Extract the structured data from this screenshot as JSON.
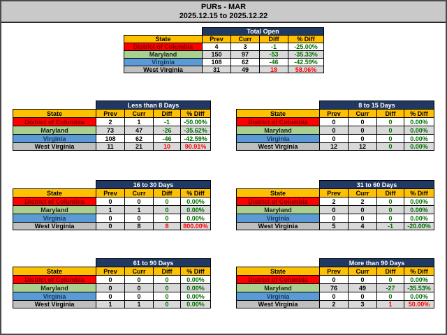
{
  "window": {
    "title": "PURs - MAR",
    "date_range": "2025.12.15 to 2025.12.22"
  },
  "table_columns": [
    "State",
    "Prev",
    "Curr",
    "Diff",
    "% Diff"
  ],
  "tables": [
    {
      "title": "Total Open",
      "rows": [
        {
          "state": "District of Columbia",
          "state_key": "dc",
          "prev": "4",
          "curr": "3",
          "diff": "-1",
          "pct_diff": "-25.00%",
          "direction": "down"
        },
        {
          "state": "Maryland",
          "state_key": "md",
          "prev": "150",
          "curr": "97",
          "diff": "-53",
          "pct_diff": "-35.33%",
          "direction": "down"
        },
        {
          "state": "Virginia",
          "state_key": "va",
          "prev": "108",
          "curr": "62",
          "diff": "-46",
          "pct_diff": "-42.59%",
          "direction": "down"
        },
        {
          "state": "West Virginia",
          "state_key": "wv",
          "prev": "31",
          "curr": "49",
          "diff": "18",
          "pct_diff": "58.06%",
          "direction": "up"
        }
      ]
    },
    {
      "title": "Less than 8 Days",
      "rows": [
        {
          "state": "District of Columbia",
          "state_key": "dc",
          "prev": "2",
          "curr": "1",
          "diff": "-1",
          "pct_diff": "-50.00%",
          "direction": "down"
        },
        {
          "state": "Maryland",
          "state_key": "md",
          "prev": "73",
          "curr": "47",
          "diff": "-26",
          "pct_diff": "-35.62%",
          "direction": "down"
        },
        {
          "state": "Virginia",
          "state_key": "va",
          "prev": "108",
          "curr": "62",
          "diff": "-46",
          "pct_diff": "-42.59%",
          "direction": "down"
        },
        {
          "state": "West Virginia",
          "state_key": "wv",
          "prev": "11",
          "curr": "21",
          "diff": "10",
          "pct_diff": "90.91%",
          "direction": "up"
        }
      ]
    },
    {
      "title": "8 to 15 Days",
      "rows": [
        {
          "state": "District of Columbia",
          "state_key": "dc",
          "prev": "0",
          "curr": "0",
          "diff": "0",
          "pct_diff": "0.00%",
          "direction": "flat"
        },
        {
          "state": "Maryland",
          "state_key": "md",
          "prev": "0",
          "curr": "0",
          "diff": "0",
          "pct_diff": "0.00%",
          "direction": "flat"
        },
        {
          "state": "Virginia",
          "state_key": "va",
          "prev": "0",
          "curr": "0",
          "diff": "0",
          "pct_diff": "0.00%",
          "direction": "flat"
        },
        {
          "state": "West Virginia",
          "state_key": "wv",
          "prev": "12",
          "curr": "12",
          "diff": "0",
          "pct_diff": "0.00%",
          "direction": "flat"
        }
      ]
    },
    {
      "title": "16 to 30 Days",
      "rows": [
        {
          "state": "District of Columbia",
          "state_key": "dc",
          "prev": "0",
          "curr": "0",
          "diff": "0",
          "pct_diff": "0.00%",
          "direction": "flat"
        },
        {
          "state": "Maryland",
          "state_key": "md",
          "prev": "1",
          "curr": "1",
          "diff": "0",
          "pct_diff": "0.00%",
          "direction": "flat"
        },
        {
          "state": "Virginia",
          "state_key": "va",
          "prev": "0",
          "curr": "0",
          "diff": "0",
          "pct_diff": "0.00%",
          "direction": "flat"
        },
        {
          "state": "West Virginia",
          "state_key": "wv",
          "prev": "0",
          "curr": "8",
          "diff": "8",
          "pct_diff": "800.00%",
          "direction": "up"
        }
      ]
    },
    {
      "title": "31 to 60 Days",
      "rows": [
        {
          "state": "District of Columbia",
          "state_key": "dc",
          "prev": "2",
          "curr": "2",
          "diff": "0",
          "pct_diff": "0.00%",
          "direction": "flat"
        },
        {
          "state": "Maryland",
          "state_key": "md",
          "prev": "0",
          "curr": "0",
          "diff": "0",
          "pct_diff": "0.00%",
          "direction": "flat"
        },
        {
          "state": "Virginia",
          "state_key": "va",
          "prev": "0",
          "curr": "0",
          "diff": "0",
          "pct_diff": "0.00%",
          "direction": "flat"
        },
        {
          "state": "West Virginia",
          "state_key": "wv",
          "prev": "5",
          "curr": "4",
          "diff": "-1",
          "pct_diff": "-20.00%",
          "direction": "down"
        }
      ]
    },
    {
      "title": "61 to 90 Days",
      "rows": [
        {
          "state": "District of Columbia",
          "state_key": "dc",
          "prev": "0",
          "curr": "0",
          "diff": "0",
          "pct_diff": "0.00%",
          "direction": "flat"
        },
        {
          "state": "Maryland",
          "state_key": "md",
          "prev": "0",
          "curr": "0",
          "diff": "0",
          "pct_diff": "0.00%",
          "direction": "flat"
        },
        {
          "state": "Virginia",
          "state_key": "va",
          "prev": "0",
          "curr": "0",
          "diff": "0",
          "pct_diff": "0.00%",
          "direction": "flat"
        },
        {
          "state": "West Virginia",
          "state_key": "wv",
          "prev": "1",
          "curr": "1",
          "diff": "0",
          "pct_diff": "0.00%",
          "direction": "flat"
        }
      ]
    },
    {
      "title": "More than 90 Days",
      "rows": [
        {
          "state": "District of Columbia",
          "state_key": "dc",
          "prev": "0",
          "curr": "0",
          "diff": "0",
          "pct_diff": "0.00%",
          "direction": "flat"
        },
        {
          "state": "Maryland",
          "state_key": "md",
          "prev": "76",
          "curr": "49",
          "diff": "-27",
          "pct_diff": "-35.53%",
          "direction": "down"
        },
        {
          "state": "Virginia",
          "state_key": "va",
          "prev": "0",
          "curr": "0",
          "diff": "0",
          "pct_diff": "0.00%",
          "direction": "flat"
        },
        {
          "state": "West Virginia",
          "state_key": "wv",
          "prev": "2",
          "curr": "3",
          "diff": "1",
          "pct_diff": "50.00%",
          "direction": "up"
        }
      ]
    }
  ],
  "colors": {
    "title_band_bg": "#c9c9c9",
    "table_title_bg": "#1f3864",
    "table_title_text": "#ffffff",
    "column_header_bg": "#ffc000",
    "column_header_text": "#000000",
    "state_row_bg": {
      "dc": "#ff0000",
      "md": "#a9d08e",
      "va": "#5b9bd5",
      "wv": "#bfbfbf"
    },
    "state_row_text": {
      "dc": "#7b0000",
      "md": "#1f1f1f",
      "va": "#17375d",
      "wv": "#000000"
    },
    "band_even": "#ffffff",
    "band_odd": "#d9d9d9",
    "value_good": "#007000",
    "value_bad": "#ff0000",
    "value_neutral": "#000000"
  }
}
